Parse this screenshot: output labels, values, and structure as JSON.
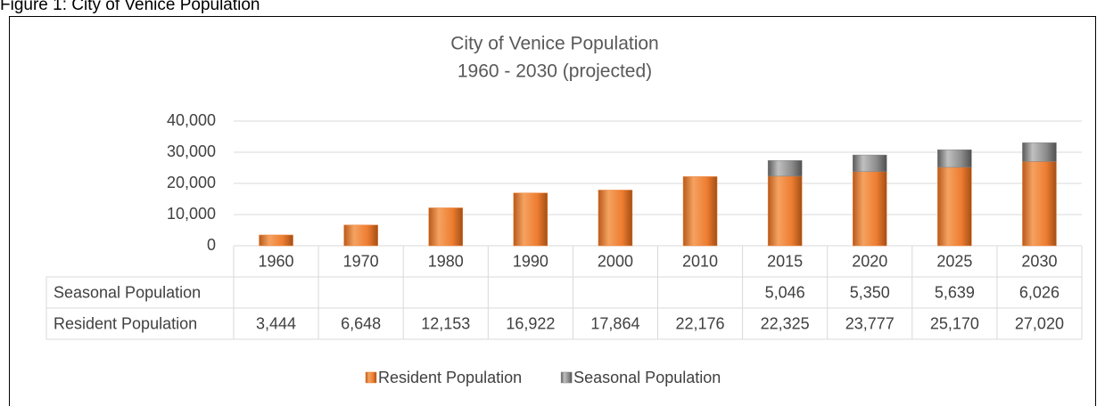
{
  "caption": "Figure 1: City of Venice Population",
  "chart_data": {
    "type": "bar",
    "stacked": true,
    "title": "City of Venice Population",
    "subtitle": "1960 - 2030 (projected)",
    "categories": [
      "1960",
      "1970",
      "1980",
      "1990",
      "2000",
      "2010",
      "2015",
      "2020",
      "2025",
      "2030"
    ],
    "series": [
      {
        "name": "Resident Population",
        "color": "#ed7d31",
        "values": [
          3444,
          6648,
          12153,
          16922,
          17864,
          22176,
          22325,
          23777,
          25170,
          27020
        ],
        "value_labels": [
          "3,444",
          "6,648",
          "12,153",
          "16,922",
          "17,864",
          "22,176",
          "22,325",
          "23,777",
          "25,170",
          "27,020"
        ]
      },
      {
        "name": "Seasonal Population",
        "color": "#808080",
        "values": [
          null,
          null,
          null,
          null,
          null,
          null,
          5046,
          5350,
          5639,
          6026
        ],
        "value_labels": [
          null,
          null,
          null,
          null,
          null,
          null,
          "5,046",
          "5,350",
          "5,639",
          "6,026"
        ]
      }
    ],
    "ylim": [
      0,
      40000
    ],
    "yticks": [
      0,
      {
        "value": 10000,
        "label": "10,000"
      },
      {
        "value": 20000,
        "label": "20,000"
      },
      {
        "value": 30000,
        "label": "30,000"
      },
      {
        "value": 40000,
        "label": "40,000"
      }
    ],
    "grid": true,
    "legend": "bottom",
    "data_table": true
  }
}
